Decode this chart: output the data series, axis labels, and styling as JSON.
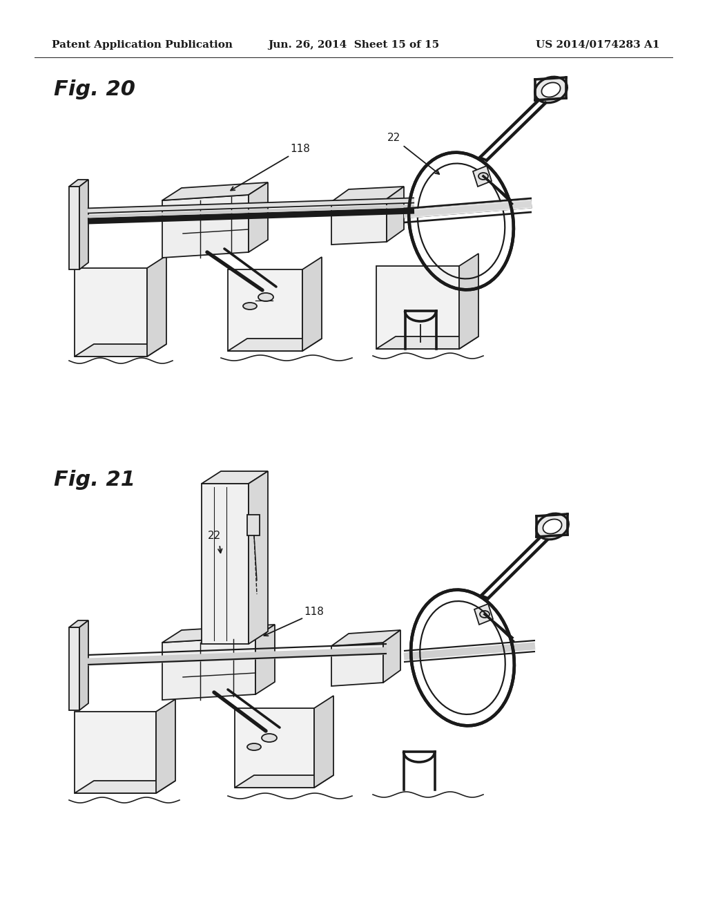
{
  "background_color": "#ffffff",
  "line_color": "#1a1a1a",
  "label_color": "#111111",
  "header_left": "Patent Application Publication",
  "header_center": "Jun. 26, 2014  Sheet 15 of 15",
  "header_right": "US 2014/0174283 A1",
  "header_fontsize": 11,
  "fig20_label": "Fig. 20",
  "fig21_label": "Fig. 21",
  "fig_label_fontsize": 22
}
